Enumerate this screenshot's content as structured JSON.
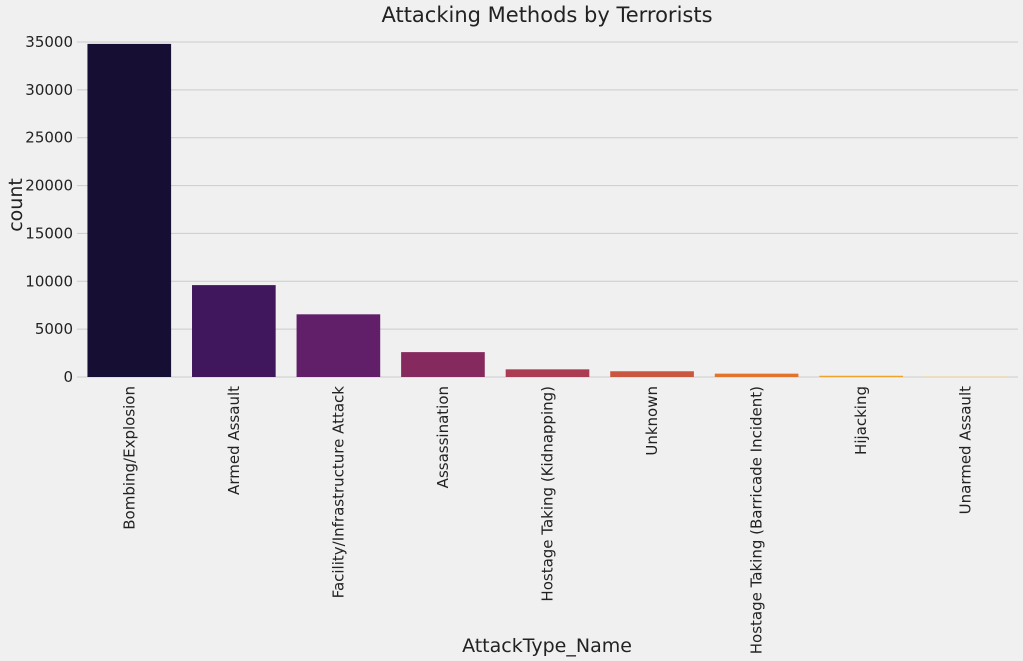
{
  "chart_data": {
    "type": "bar",
    "title": "Attacking Methods by Terrorists",
    "xlabel": "AttackType_Name",
    "ylabel": "count",
    "categories": [
      "Bombing/Explosion",
      "Armed Assault",
      "Facility/Infrastructure Attack",
      "Assassination",
      "Hostage Taking (Kidnapping)",
      "Unknown",
      "Hostage Taking (Barricade Incident)",
      "Hijacking",
      "Unarmed Assault"
    ],
    "values": [
      34800,
      9600,
      6550,
      2600,
      800,
      600,
      350,
      130,
      30
    ],
    "ylim": [
      0,
      35000
    ],
    "yticks": [
      0,
      5000,
      10000,
      15000,
      20000,
      25000,
      30000,
      35000
    ],
    "ytick_labels": [
      "0",
      "5000",
      "10000",
      "15000",
      "20000",
      "25000",
      "30000",
      "35000"
    ],
    "grid": "horizontal",
    "colors": [
      "#160f33",
      "#40165d",
      "#621f69",
      "#86295e",
      "#ab3d52",
      "#cb563f",
      "#e2742c",
      "#f0a32c",
      "#f5d35a"
    ]
  }
}
